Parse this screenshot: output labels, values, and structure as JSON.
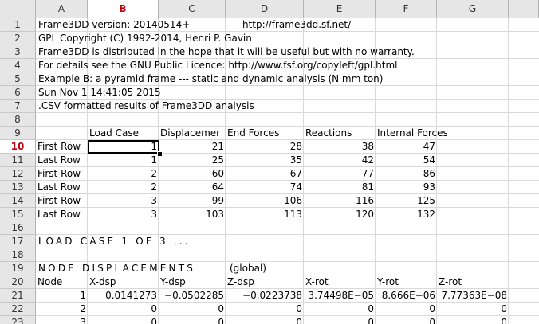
{
  "columns": [
    "A",
    "B",
    "C",
    "D",
    "E",
    "F",
    "G"
  ],
  "active_column": "B",
  "rows": [
    "1",
    "2",
    "3",
    "4",
    "5",
    "6",
    "7",
    "8",
    "9",
    "10",
    "11",
    "12",
    "13",
    "14",
    "15",
    "16",
    "17",
    "18",
    "19",
    "20",
    "21",
    "22",
    "23"
  ],
  "active_row": "10",
  "cells": {
    "r1a": "Frame3DD version: 20140514+",
    "r1d": "http://frame3dd.sf.net/",
    "r2a": "GPL Copyright (C) 1992-2014, Henri P. Gavin",
    "r3a": "Frame3DD is distributed in the hope that it will be useful but with no warranty.",
    "r4a": "For details see the GNU Public Licence: http://www.fsf.org/copyleft/gpl.html",
    "r5a": "Example B: a pyramid frame --- static and dynamic analysis (N mm ton)",
    "r6a": "Sun Nov  1 14:41:05 2015",
    "r7a": ".CSV formatted results of Frame3DD analysis",
    "r9b": "Load Case",
    "r9c": "Displacemer",
    "r9d": "End Forces",
    "r9e": "Reactions",
    "r9f": "Internal Forces",
    "r17a": "LOAD CASE 1 OF 3 ...",
    "r19a": "NODE DISPLACEMENTS",
    "r19d": "(global)"
  },
  "table_rows": [
    {
      "row": "10",
      "a": "First Row",
      "b": "1",
      "c": "21",
      "d": "28",
      "e": "38",
      "f": "47"
    },
    {
      "row": "11",
      "a": "Last Row",
      "b": "1",
      "c": "25",
      "d": "35",
      "e": "42",
      "f": "54"
    },
    {
      "row": "12",
      "a": "First Row",
      "b": "2",
      "c": "60",
      "d": "67",
      "e": "77",
      "f": "86"
    },
    {
      "row": "13",
      "a": "Last Row",
      "b": "2",
      "c": "64",
      "d": "74",
      "e": "81",
      "f": "93"
    },
    {
      "row": "14",
      "a": "First Row",
      "b": "3",
      "c": "99",
      "d": "106",
      "e": "116",
      "f": "125"
    },
    {
      "row": "15",
      "a": "Last Row",
      "b": "3",
      "c": "103",
      "d": "113",
      "e": "120",
      "f": "132"
    }
  ],
  "disp_header": {
    "a": "Node",
    "b": "X-dsp",
    "c": "Y-dsp",
    "d": "Z-dsp",
    "e": "X-rot",
    "f": "Y-rot",
    "g": "Z-rot"
  },
  "disp_rows": [
    {
      "row": "21",
      "a": "1",
      "b": "0.0141273",
      "c": "−0.0502285",
      "d": "−0.0223738",
      "e": "3.74498E−05",
      "f": "8.666E−06",
      "g": "7.77363E−08"
    },
    {
      "row": "22",
      "a": "2",
      "b": "0",
      "c": "0",
      "d": "0",
      "e": "0",
      "f": "0",
      "g": "0"
    },
    {
      "row": "23",
      "a": "3",
      "b": "0",
      "c": "0",
      "d": "0",
      "e": "0",
      "f": "0",
      "g": "0"
    }
  ]
}
